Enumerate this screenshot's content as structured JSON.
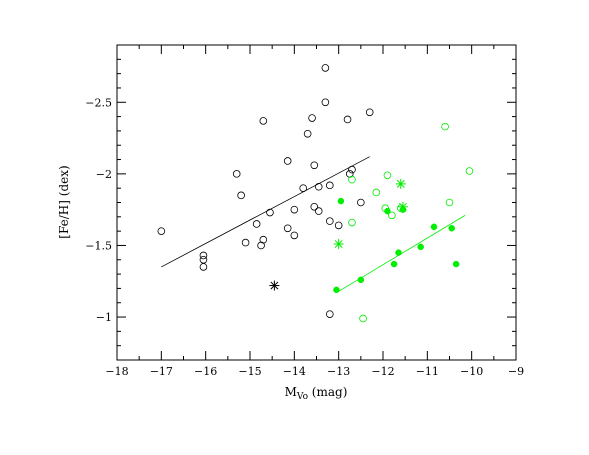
{
  "chart_data": {
    "type": "scatter",
    "title": "",
    "xlabel": "M",
    "xlabel_sub": "Vo",
    "xlabel_unit": " (mag)",
    "ylabel": "[Fe/H] (dex)",
    "xlim": [
      -18,
      -9
    ],
    "ylim": [
      -0.7,
      -2.9
    ],
    "y_axis_inverted": true,
    "x_ticks": [
      -18,
      -17,
      -16,
      -15,
      -14,
      -13,
      -12,
      -11,
      -10,
      -9
    ],
    "x_tick_labels": [
      "−18",
      "−17",
      "−16",
      "−15",
      "−14",
      "−13",
      "−12",
      "−11",
      "−10",
      "−9"
    ],
    "y_ticks": [
      -1,
      -1.5,
      -2,
      -2.5
    ],
    "y_tick_labels": [
      "−1",
      "−1.5",
      "−2",
      "−2.5"
    ],
    "grid": false,
    "colors": {
      "black": "#000000",
      "green": "#00ee00"
    },
    "series": [
      {
        "marker": "open-circle",
        "color": "#000000",
        "points": [
          [
            -17.0,
            -1.6
          ],
          [
            -16.05,
            -1.43
          ],
          [
            -16.05,
            -1.4
          ],
          [
            -16.05,
            -1.35
          ],
          [
            -15.3,
            -2.0
          ],
          [
            -15.2,
            -1.85
          ],
          [
            -15.1,
            -1.52
          ],
          [
            -14.85,
            -1.65
          ],
          [
            -14.75,
            -1.5
          ],
          [
            -14.7,
            -1.54
          ],
          [
            -14.7,
            -2.37
          ],
          [
            -14.55,
            -1.73
          ],
          [
            -14.15,
            -1.62
          ],
          [
            -14.15,
            -2.09
          ],
          [
            -14.0,
            -1.57
          ],
          [
            -14.0,
            -1.75
          ],
          [
            -13.8,
            -1.9
          ],
          [
            -13.7,
            -2.28
          ],
          [
            -13.6,
            -2.39
          ],
          [
            -13.55,
            -1.77
          ],
          [
            -13.55,
            -2.06
          ],
          [
            -13.45,
            -1.74
          ],
          [
            -13.45,
            -1.91
          ],
          [
            -13.3,
            -2.74
          ],
          [
            -13.3,
            -2.5
          ],
          [
            -13.2,
            -1.92
          ],
          [
            -13.2,
            -1.67
          ],
          [
            -13.2,
            -1.02
          ],
          [
            -13.0,
            -1.64
          ],
          [
            -12.8,
            -2.38
          ],
          [
            -12.75,
            -2.0
          ],
          [
            -12.7,
            -2.03
          ],
          [
            -12.5,
            -1.8
          ],
          [
            -12.3,
            -2.43
          ]
        ]
      },
      {
        "marker": "filled-circle",
        "color": "#00ee00",
        "points": [
          [
            -13.05,
            -1.19
          ],
          [
            -12.95,
            -1.81
          ],
          [
            -12.5,
            -1.26
          ],
          [
            -11.9,
            -1.74
          ],
          [
            -11.75,
            -1.37
          ],
          [
            -11.65,
            -1.45
          ],
          [
            -11.55,
            -1.75
          ],
          [
            -11.15,
            -1.49
          ],
          [
            -10.85,
            -1.63
          ],
          [
            -10.45,
            -1.62
          ],
          [
            -10.35,
            -1.37
          ]
        ]
      },
      {
        "marker": "open-circle",
        "color": "#00ee00",
        "points": [
          [
            -12.7,
            -1.96
          ],
          [
            -12.7,
            -1.66
          ],
          [
            -12.45,
            -0.99
          ],
          [
            -12.15,
            -1.87
          ],
          [
            -11.95,
            -1.76
          ],
          [
            -11.9,
            -1.99
          ],
          [
            -11.8,
            -1.71
          ],
          [
            -11.6,
            -1.76
          ],
          [
            -10.6,
            -2.33
          ],
          [
            -10.5,
            -1.8
          ],
          [
            -10.05,
            -2.02
          ]
        ]
      },
      {
        "marker": "asterisk",
        "color": "#000000",
        "points": [
          [
            -14.45,
            -1.22
          ]
        ]
      },
      {
        "marker": "asterisk",
        "color": "#00ee00",
        "points": [
          [
            -13.0,
            -1.51
          ],
          [
            -11.6,
            -1.93
          ],
          [
            -11.55,
            -1.77
          ]
        ]
      }
    ],
    "fit_lines": [
      {
        "color": "#000000",
        "x": [
          -17.0,
          -12.3
        ],
        "y": [
          -1.35,
          -2.12
        ]
      },
      {
        "color": "#00ee00",
        "x": [
          -13.05,
          -10.15
        ],
        "y": [
          -1.17,
          -1.71
        ]
      }
    ]
  }
}
